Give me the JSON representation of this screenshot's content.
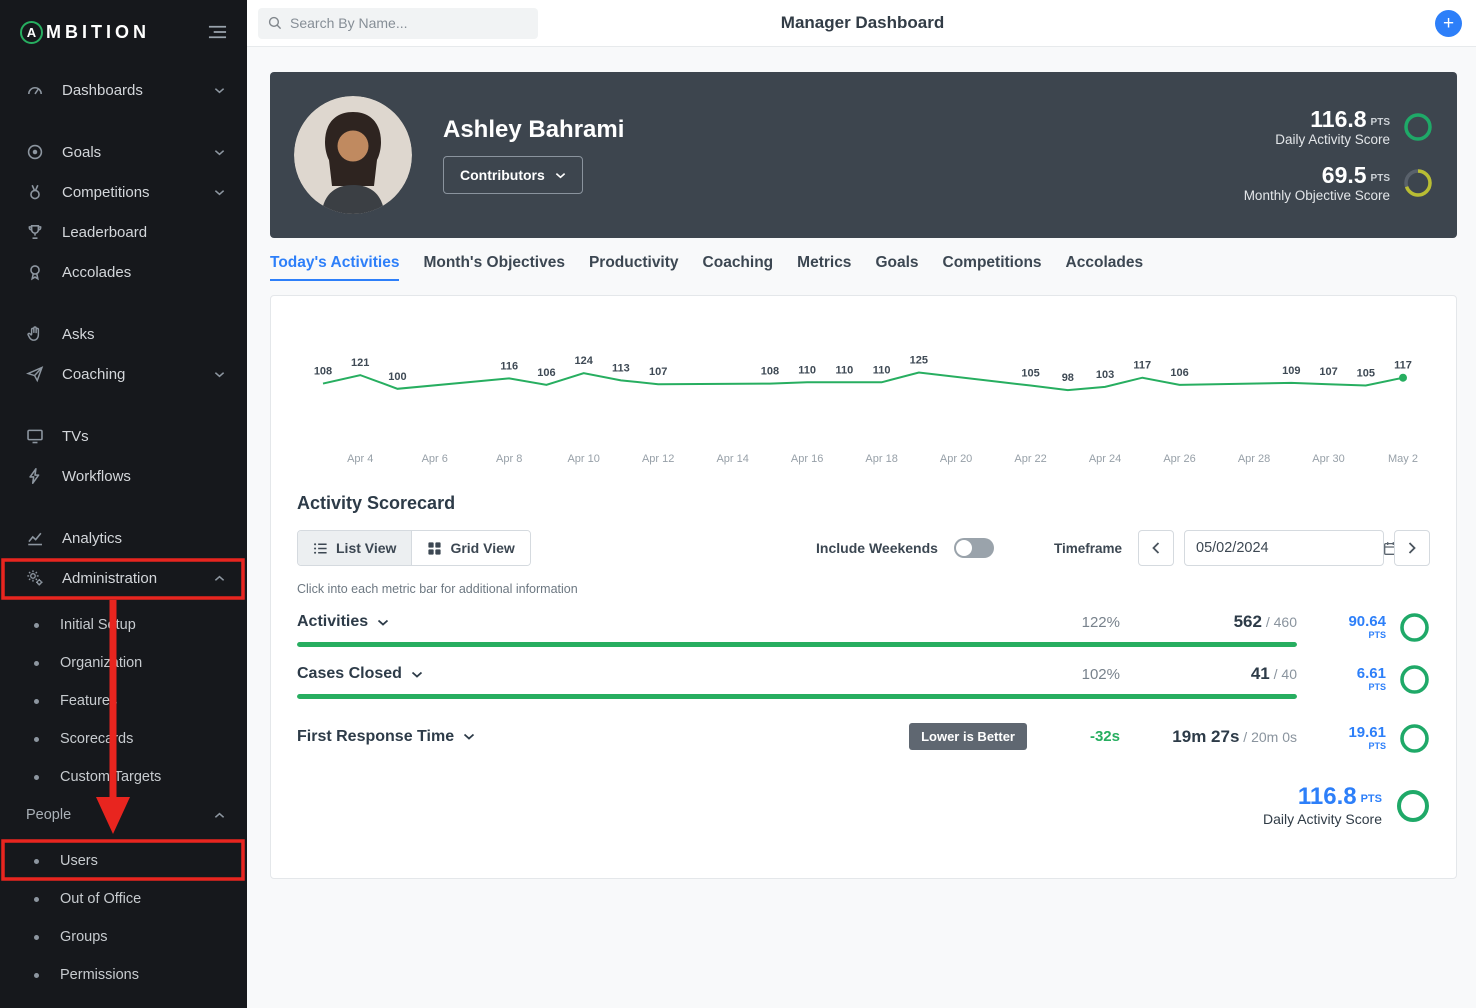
{
  "colors": {
    "accent_green": "#27ae60",
    "accent_blue": "#2d7ff9",
    "annotation_red": "#e8251f",
    "ring_green": "#1fa968",
    "ring_yellow": "#b9bd33",
    "sidebar_bg": "#16181c",
    "header_card_bg": "#3d454e"
  },
  "sidebar": {
    "logo": {
      "letter": "A",
      "rest": "MBITION"
    },
    "items": [
      {
        "label": "Dashboards"
      },
      {
        "label": "Goals"
      },
      {
        "label": "Competitions"
      },
      {
        "label": "Leaderboard"
      },
      {
        "label": "Accolades"
      },
      {
        "label": "Asks"
      },
      {
        "label": "Coaching"
      },
      {
        "label": "TVs"
      },
      {
        "label": "Workflows"
      },
      {
        "label": "Analytics"
      },
      {
        "label": "Administration"
      }
    ],
    "admin_children": [
      {
        "label": "Initial Setup"
      },
      {
        "label": "Organization"
      },
      {
        "label": "Features"
      },
      {
        "label": "Scorecards"
      },
      {
        "label": "Custom Targets"
      }
    ],
    "people_section": {
      "label": "People"
    },
    "people_children": [
      {
        "label": "Users"
      },
      {
        "label": "Out of Office"
      },
      {
        "label": "Groups"
      },
      {
        "label": "Permissions"
      }
    ]
  },
  "topbar": {
    "search_placeholder": "Search By Name...",
    "title": "Manager Dashboard",
    "add_button": "+"
  },
  "profile": {
    "name": "Ashley Bahrami",
    "group_selector": "Contributors",
    "scores": [
      {
        "value": "116.8",
        "unit": "PTS",
        "label": "Daily Activity Score",
        "ring_color": "#1fa968",
        "ring_pct": 100
      },
      {
        "value": "69.5",
        "unit": "PTS",
        "label": "Monthly Objective Score",
        "ring_color": "#b9bd33",
        "ring_pct": 69.5
      }
    ]
  },
  "tabs": [
    {
      "label": "Today's Activities",
      "active": true
    },
    {
      "label": "Month's Objectives"
    },
    {
      "label": "Productivity"
    },
    {
      "label": "Coaching"
    },
    {
      "label": "Metrics"
    },
    {
      "label": "Goals"
    },
    {
      "label": "Competitions"
    },
    {
      "label": "Accolades"
    }
  ],
  "chart_data": {
    "type": "line",
    "title": "Daily activity totals",
    "line_color": "#27ae60",
    "weekends_excluded": true,
    "value_range": [
      90,
      135
    ],
    "points": [
      {
        "date": "Apr 3",
        "day": 0,
        "value": 108
      },
      {
        "date": "Apr 4",
        "day": 1,
        "value": 121
      },
      {
        "date": "Apr 5",
        "day": 2,
        "value": 100
      },
      {
        "date": "Apr 8",
        "day": 5,
        "value": 116
      },
      {
        "date": "Apr 9",
        "day": 6,
        "value": 106
      },
      {
        "date": "Apr 10",
        "day": 7,
        "value": 124
      },
      {
        "date": "Apr 11",
        "day": 8,
        "value": 113
      },
      {
        "date": "Apr 12",
        "day": 9,
        "value": 107
      },
      {
        "date": "Apr 15",
        "day": 12,
        "value": 108
      },
      {
        "date": "Apr 16",
        "day": 13,
        "value": 110
      },
      {
        "date": "Apr 17",
        "day": 14,
        "value": 110
      },
      {
        "date": "Apr 18",
        "day": 15,
        "value": 110
      },
      {
        "date": "Apr 19",
        "day": 16,
        "value": 125
      },
      {
        "date": "Apr 22",
        "day": 19,
        "value": 105
      },
      {
        "date": "Apr 23",
        "day": 20,
        "value": 98
      },
      {
        "date": "Apr 24",
        "day": 21,
        "value": 103
      },
      {
        "date": "Apr 25",
        "day": 22,
        "value": 117
      },
      {
        "date": "Apr 26",
        "day": 23,
        "value": 106
      },
      {
        "date": "Apr 29",
        "day": 26,
        "value": 109
      },
      {
        "date": "Apr 30",
        "day": 27,
        "value": 107
      },
      {
        "date": "May 1",
        "day": 28,
        "value": 105
      },
      {
        "date": "May 2",
        "day": 29,
        "value": 117
      }
    ],
    "x_ticks": [
      {
        "label": "Apr 4",
        "day": 1
      },
      {
        "label": "Apr 6",
        "day": 3
      },
      {
        "label": "Apr 8",
        "day": 5
      },
      {
        "label": "Apr 10",
        "day": 7
      },
      {
        "label": "Apr 12",
        "day": 9
      },
      {
        "label": "Apr 14",
        "day": 11
      },
      {
        "label": "Apr 16",
        "day": 13
      },
      {
        "label": "Apr 18",
        "day": 15
      },
      {
        "label": "Apr 20",
        "day": 17
      },
      {
        "label": "Apr 22",
        "day": 19
      },
      {
        "label": "Apr 24",
        "day": 21
      },
      {
        "label": "Apr 26",
        "day": 23
      },
      {
        "label": "Apr 28",
        "day": 25
      },
      {
        "label": "Apr 30",
        "day": 27
      },
      {
        "label": "May 2",
        "day": 29
      }
    ]
  },
  "scorecard": {
    "title": "Activity Scorecard",
    "list_view": "List View",
    "grid_view": "Grid View",
    "include_weekends": "Include Weekends",
    "weekends_on": false,
    "timeframe_label": "Timeframe",
    "date": "05/02/2024",
    "helper": "Click into each metric bar for additional information",
    "metrics": [
      {
        "name": "Activities",
        "percent": "122%",
        "value": "562",
        "target": "/ 460",
        "pts": "90.64",
        "bar_pct": 100
      },
      {
        "name": "Cases Closed",
        "percent": "102%",
        "value": "41",
        "target": "/ 40",
        "pts": "6.61",
        "bar_pct": 100
      },
      {
        "name": "First Response Time",
        "badge": "Lower is Better",
        "delta": "-32s",
        "value": "19m 27s",
        "target": "/ 20m 0s",
        "pts": "19.61"
      }
    ],
    "total": {
      "value": "116.8",
      "unit": "PTS",
      "label": "Daily Activity Score"
    }
  },
  "pts_label": "PTS"
}
